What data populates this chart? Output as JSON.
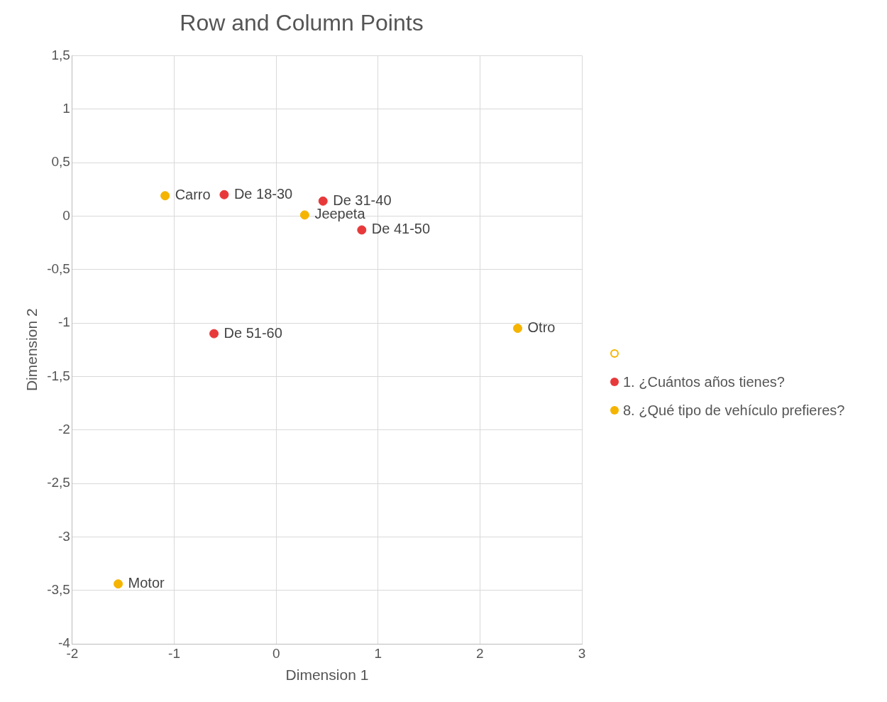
{
  "chart_data": {
    "type": "scatter",
    "title": "Row and Column Points",
    "xlabel": "Dimension 1",
    "ylabel": "Dimension 2",
    "series": [
      {
        "name": "1. ¿Cuántos años tienes?",
        "color": "#e8393a",
        "x": [
          -0.51,
          0.46,
          0.84,
          -0.61
        ],
        "values": [
          0.2,
          0.14,
          -0.13,
          -1.1
        ],
        "value_labels": [
          "De 18-30",
          "De 31-40",
          "De 41-50",
          "De 51-60"
        ]
      },
      {
        "name": "8. ¿Qué tipo de vehículo prefieres?",
        "color": "#f5b400",
        "x": [
          -1.09,
          0.28,
          2.37,
          -1.55
        ],
        "values": [
          0.19,
          0.01,
          -1.05,
          -3.44
        ],
        "value_labels": [
          "Carro",
          "Jeepeta",
          "Otro",
          "Motor"
        ]
      }
    ],
    "xlim": [
      -2,
      3
    ],
    "xticks": [
      -2,
      -1,
      0,
      1,
      2,
      3
    ],
    "ylim": [
      -4,
      1.5
    ],
    "yticks": [
      {
        "value": -4,
        "label": "-4"
      },
      {
        "value": -3.5,
        "label": "-3,5"
      },
      {
        "value": -3,
        "label": "-3"
      },
      {
        "value": -2.5,
        "label": "-2,5"
      },
      {
        "value": -2,
        "label": "-2"
      },
      {
        "value": -1.5,
        "label": "-1,5"
      },
      {
        "value": -1,
        "label": "-1"
      },
      {
        "value": -0.5,
        "label": "-0,5"
      },
      {
        "value": 0,
        "label": "0"
      },
      {
        "value": 0.5,
        "label": "0,5"
      },
      {
        "value": 1,
        "label": "1"
      },
      {
        "value": 1.5,
        "label": "1,5"
      }
    ],
    "grid": true,
    "legend": "right",
    "marker": "circle"
  }
}
